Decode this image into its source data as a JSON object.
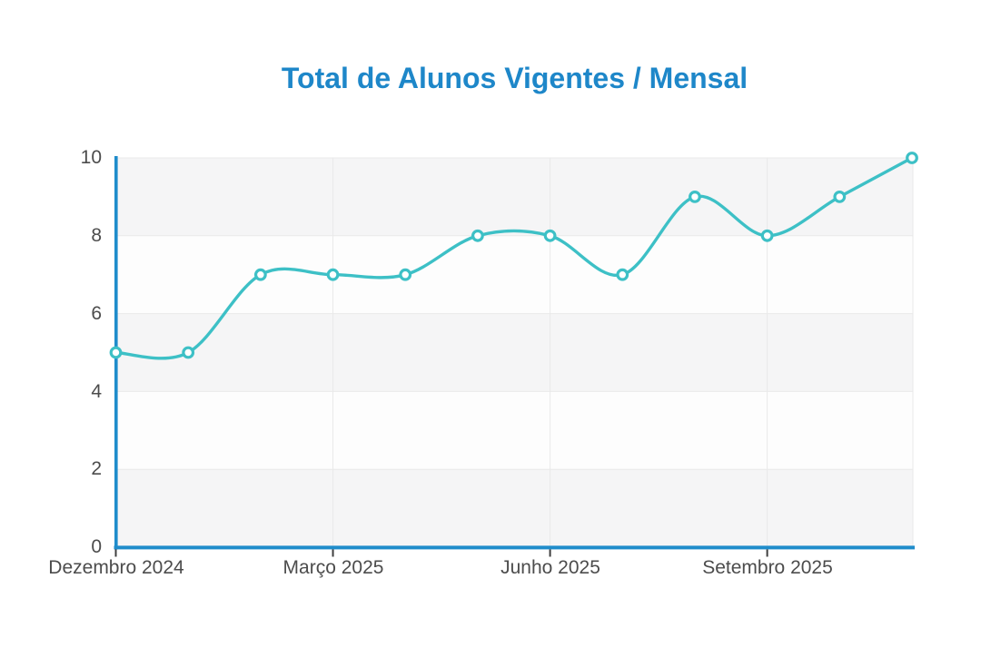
{
  "title": "Total de Alunos Vigentes / Mensal",
  "colors": {
    "title": "#1e87c9",
    "axis": "#1f8ccb",
    "series": "#3dc0c6",
    "marker_fill": "#ffffff",
    "band_gray": "#f5f5f6",
    "band_white": "#fdfdfd",
    "gridline": "#e9e9e9",
    "tick_mark": "#3f3f3f",
    "label_text": "#4c4c4c"
  },
  "chart_data": {
    "type": "line",
    "title": "Total de Alunos Vigentes / Mensal",
    "values": [
      5,
      5,
      7,
      7,
      7,
      8,
      8,
      7,
      9,
      8,
      9,
      10
    ],
    "point_count": 12,
    "x_tick_labels": [
      "Dezembro 2024",
      "Março 2025",
      "Junho 2025",
      "Setembro 2025"
    ],
    "x_tick_indices": [
      0,
      3,
      6,
      9
    ],
    "y_ticks": [
      0,
      2,
      4,
      6,
      8,
      10
    ],
    "ylim": [
      0,
      10
    ],
    "xlabel": "",
    "ylabel": "",
    "legend": "none",
    "grid": "horizontal lines at each y tick, vertical lines at labeled x ticks, alternating gray/white background bands",
    "line_style": "smooth spline",
    "marker": "open circle"
  }
}
